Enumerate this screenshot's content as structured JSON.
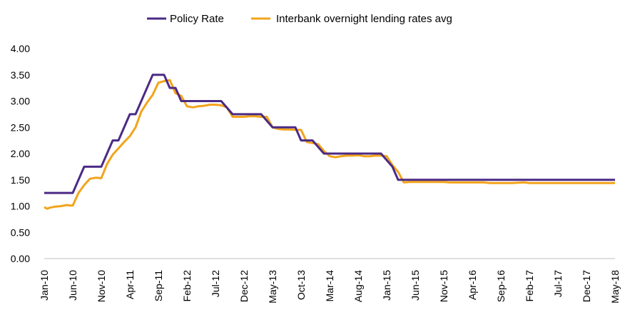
{
  "chart_data": {
    "type": "line",
    "title": "",
    "xlabel": "",
    "ylabel": "",
    "ylim": [
      0,
      4
    ],
    "yticks": [
      "0.00",
      "0.50",
      "1.00",
      "1.50",
      "2.00",
      "2.50",
      "3.00",
      "3.50",
      "4.00"
    ],
    "x_range": [
      "Jan-10",
      "May-18"
    ],
    "xticks": [
      "Jan-10",
      "Jun-10",
      "Nov-10",
      "Apr-11",
      "Sep-11",
      "Feb-12",
      "Jul-12",
      "Dec-12",
      "May-13",
      "Oct-13",
      "Mar-14",
      "Aug-14",
      "Jan-15",
      "Jun-15",
      "Nov-15",
      "Apr-16",
      "Sep-16",
      "Feb-17",
      "Jul-17",
      "Dec-17",
      "May-18"
    ],
    "legend_position": "top",
    "series": [
      {
        "name": "Policy Rate",
        "color": "#4b2a85",
        "points": [
          [
            0,
            1.25
          ],
          [
            5,
            1.25
          ],
          [
            7,
            1.75
          ],
          [
            10,
            1.75
          ],
          [
            12,
            2.25
          ],
          [
            13,
            2.25
          ],
          [
            15,
            2.75
          ],
          [
            16,
            2.75
          ],
          [
            19,
            3.5
          ],
          [
            21,
            3.5
          ],
          [
            22,
            3.25
          ],
          [
            23,
            3.25
          ],
          [
            24,
            3.0
          ],
          [
            31,
            3.0
          ],
          [
            33,
            2.75
          ],
          [
            38,
            2.75
          ],
          [
            40,
            2.5
          ],
          [
            44,
            2.5
          ],
          [
            45,
            2.25
          ],
          [
            47,
            2.25
          ],
          [
            49,
            2.0
          ],
          [
            59,
            2.0
          ],
          [
            61,
            1.75
          ],
          [
            62,
            1.5
          ],
          [
            100,
            1.5
          ]
        ]
      },
      {
        "name": "Interbank overnight lending rates avg",
        "color": "#f2a41a",
        "points": [
          [
            0,
            0.98
          ],
          [
            0.5,
            0.95
          ],
          [
            1,
            0.97
          ],
          [
            2,
            0.99
          ],
          [
            3,
            1.0
          ],
          [
            4,
            1.02
          ],
          [
            4.5,
            1.01
          ],
          [
            5,
            1.01
          ],
          [
            6,
            1.25
          ],
          [
            7,
            1.4
          ],
          [
            8,
            1.52
          ],
          [
            9,
            1.54
          ],
          [
            10,
            1.53
          ],
          [
            11,
            1.8
          ],
          [
            12,
            1.98
          ],
          [
            13,
            2.1
          ],
          [
            14,
            2.22
          ],
          [
            15,
            2.33
          ],
          [
            16,
            2.5
          ],
          [
            17,
            2.8
          ],
          [
            18,
            2.97
          ],
          [
            19,
            3.12
          ],
          [
            20,
            3.35
          ],
          [
            21,
            3.38
          ],
          [
            22,
            3.4
          ],
          [
            23,
            3.15
          ],
          [
            24,
            3.1
          ],
          [
            25,
            2.9
          ],
          [
            26,
            2.88
          ],
          [
            27,
            2.9
          ],
          [
            28,
            2.91
          ],
          [
            29,
            2.93
          ],
          [
            30,
            2.93
          ],
          [
            31,
            2.92
          ],
          [
            32,
            2.88
          ],
          [
            33,
            2.7
          ],
          [
            34,
            2.7
          ],
          [
            35,
            2.7
          ],
          [
            36,
            2.71
          ],
          [
            37,
            2.71
          ],
          [
            38,
            2.7
          ],
          [
            39,
            2.7
          ],
          [
            40,
            2.5
          ],
          [
            41,
            2.47
          ],
          [
            42,
            2.46
          ],
          [
            43,
            2.46
          ],
          [
            44,
            2.45
          ],
          [
            45,
            2.45
          ],
          [
            46,
            2.22
          ],
          [
            47,
            2.2
          ],
          [
            48,
            2.18
          ],
          [
            49,
            2.05
          ],
          [
            50,
            1.95
          ],
          [
            51,
            1.93
          ],
          [
            52,
            1.95
          ],
          [
            53,
            1.96
          ],
          [
            54,
            1.96
          ],
          [
            55,
            1.97
          ],
          [
            56,
            1.95
          ],
          [
            57,
            1.95
          ],
          [
            58,
            1.96
          ],
          [
            59,
            1.96
          ],
          [
            60,
            1.95
          ],
          [
            61,
            1.78
          ],
          [
            62,
            1.65
          ],
          [
            63,
            1.45
          ],
          [
            64,
            1.46
          ],
          [
            66,
            1.46
          ],
          [
            68,
            1.46
          ],
          [
            70,
            1.46
          ],
          [
            71,
            1.45
          ],
          [
            73,
            1.45
          ],
          [
            75,
            1.45
          ],
          [
            77,
            1.45
          ],
          [
            78,
            1.44
          ],
          [
            80,
            1.44
          ],
          [
            82,
            1.44
          ],
          [
            84,
            1.45
          ],
          [
            85,
            1.44
          ],
          [
            87,
            1.44
          ],
          [
            89,
            1.44
          ],
          [
            91,
            1.44
          ],
          [
            93,
            1.44
          ],
          [
            95,
            1.44
          ],
          [
            97,
            1.44
          ],
          [
            100,
            1.44
          ]
        ]
      }
    ]
  }
}
